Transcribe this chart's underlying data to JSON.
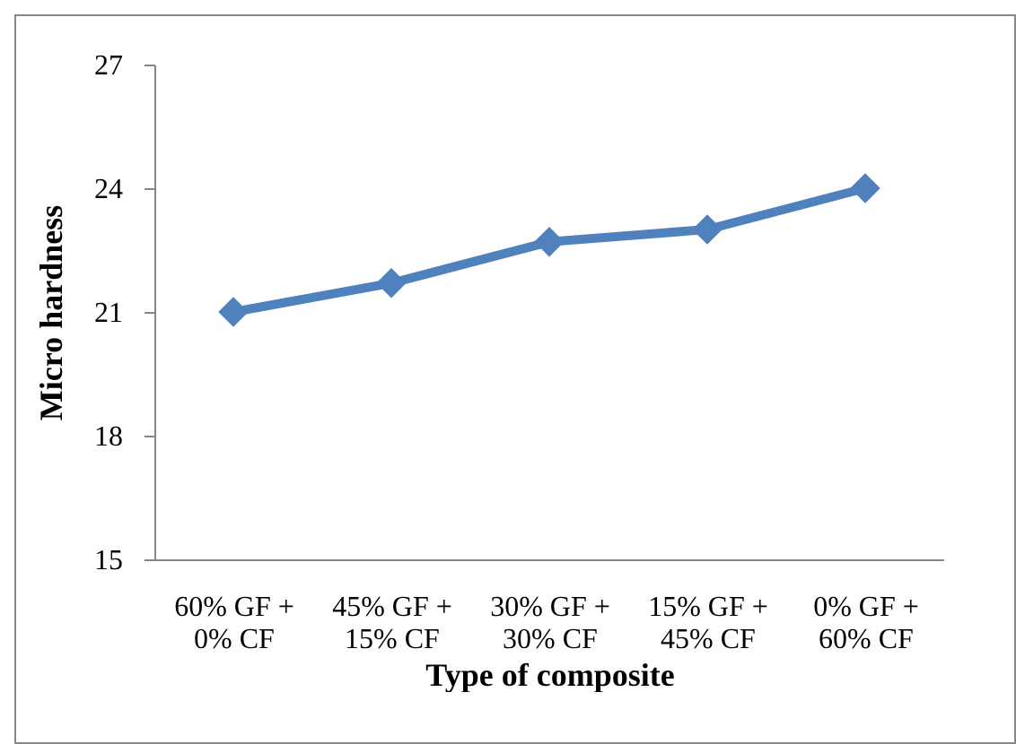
{
  "chart_data": {
    "type": "line",
    "xlabel": "Type of composite",
    "ylabel": "Micro hardness",
    "categories": [
      "60% GF + 0% CF",
      "45% GF + 15% CF",
      "30% GF + 30% CF",
      "15% GF + 45% CF",
      "0% GF + 60% CF"
    ],
    "series": [
      {
        "color": "#4f81bd",
        "values": [
          21,
          21.7,
          22.7,
          23,
          24
        ]
      }
    ],
    "ylim": [
      15,
      27
    ],
    "yticks": [
      15,
      18,
      21,
      24,
      27
    ],
    "grid": false,
    "marker": "diamond",
    "line_style": "solid"
  }
}
